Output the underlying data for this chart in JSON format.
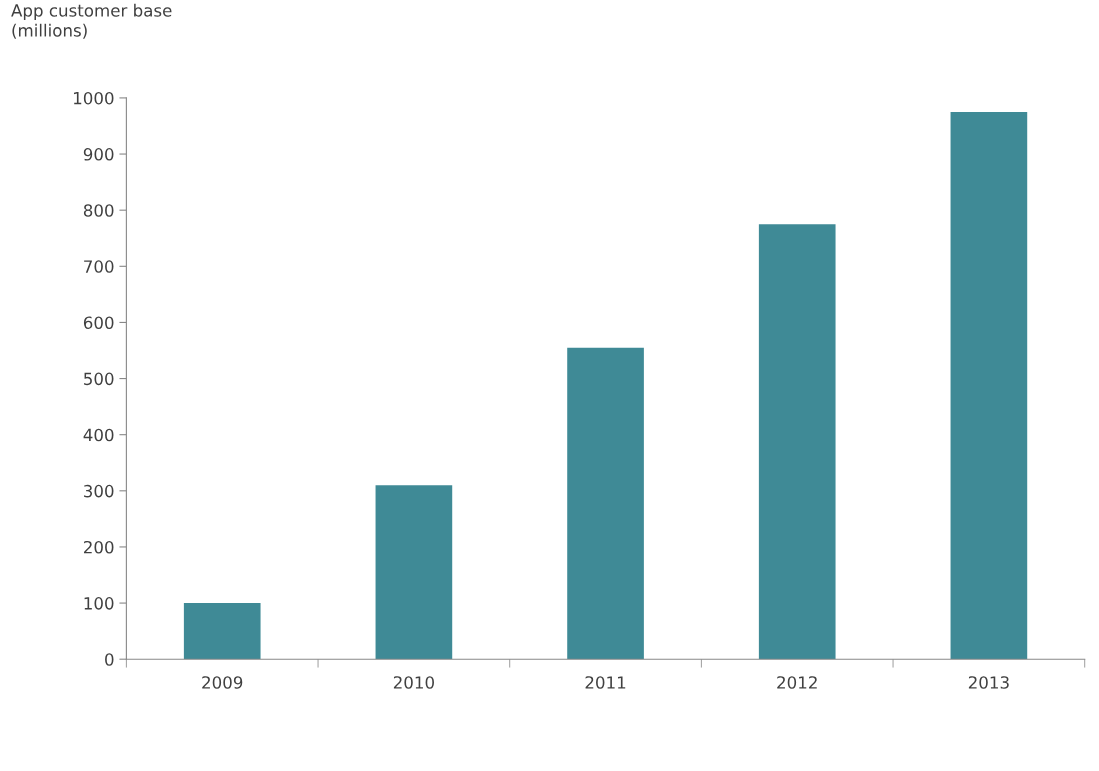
{
  "chart_data": {
    "type": "bar",
    "ylabel": "App customer base\n(millions)",
    "categories": [
      "2009",
      "2010",
      "2011",
      "2012",
      "2013"
    ],
    "values": [
      100,
      310,
      555,
      775,
      975
    ],
    "color": "#3f8a96",
    "ylim": [
      0,
      1000
    ],
    "yticks": [
      0,
      100,
      200,
      300,
      400,
      500,
      600,
      700,
      800,
      900,
      1000
    ],
    "grid": false
  }
}
